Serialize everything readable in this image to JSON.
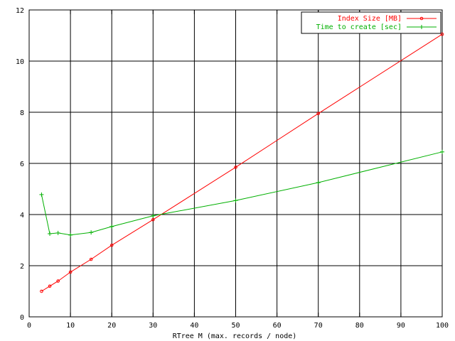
{
  "chart_data": {
    "type": "line",
    "title": "",
    "xlabel": "RTree M (max. records / node)",
    "ylabel": "",
    "xlim": [
      0,
      100
    ],
    "ylim": [
      0,
      12
    ],
    "xticks": [
      0,
      10,
      20,
      30,
      40,
      50,
      60,
      70,
      80,
      90,
      100
    ],
    "yticks": [
      0,
      2,
      4,
      6,
      8,
      10,
      12
    ],
    "grid": true,
    "legend_position": "top-right",
    "series": [
      {
        "name": "Index Size [MB]",
        "color": "#ff0000",
        "marker": "circle",
        "x": [
          3,
          5,
          7,
          10,
          15,
          20,
          30,
          50,
          70,
          100
        ],
        "y": [
          1.0,
          1.2,
          1.4,
          1.75,
          2.25,
          2.8,
          3.8,
          5.85,
          7.95,
          11.05
        ]
      },
      {
        "name": "Time to create [sec]",
        "color": "#00b000",
        "marker": "plus",
        "x": [
          3,
          5,
          7,
          10,
          15,
          20,
          30,
          50,
          70,
          100
        ],
        "y": [
          4.78,
          3.25,
          3.28,
          3.2,
          3.3,
          3.53,
          3.95,
          4.55,
          5.25,
          6.45
        ]
      }
    ]
  }
}
